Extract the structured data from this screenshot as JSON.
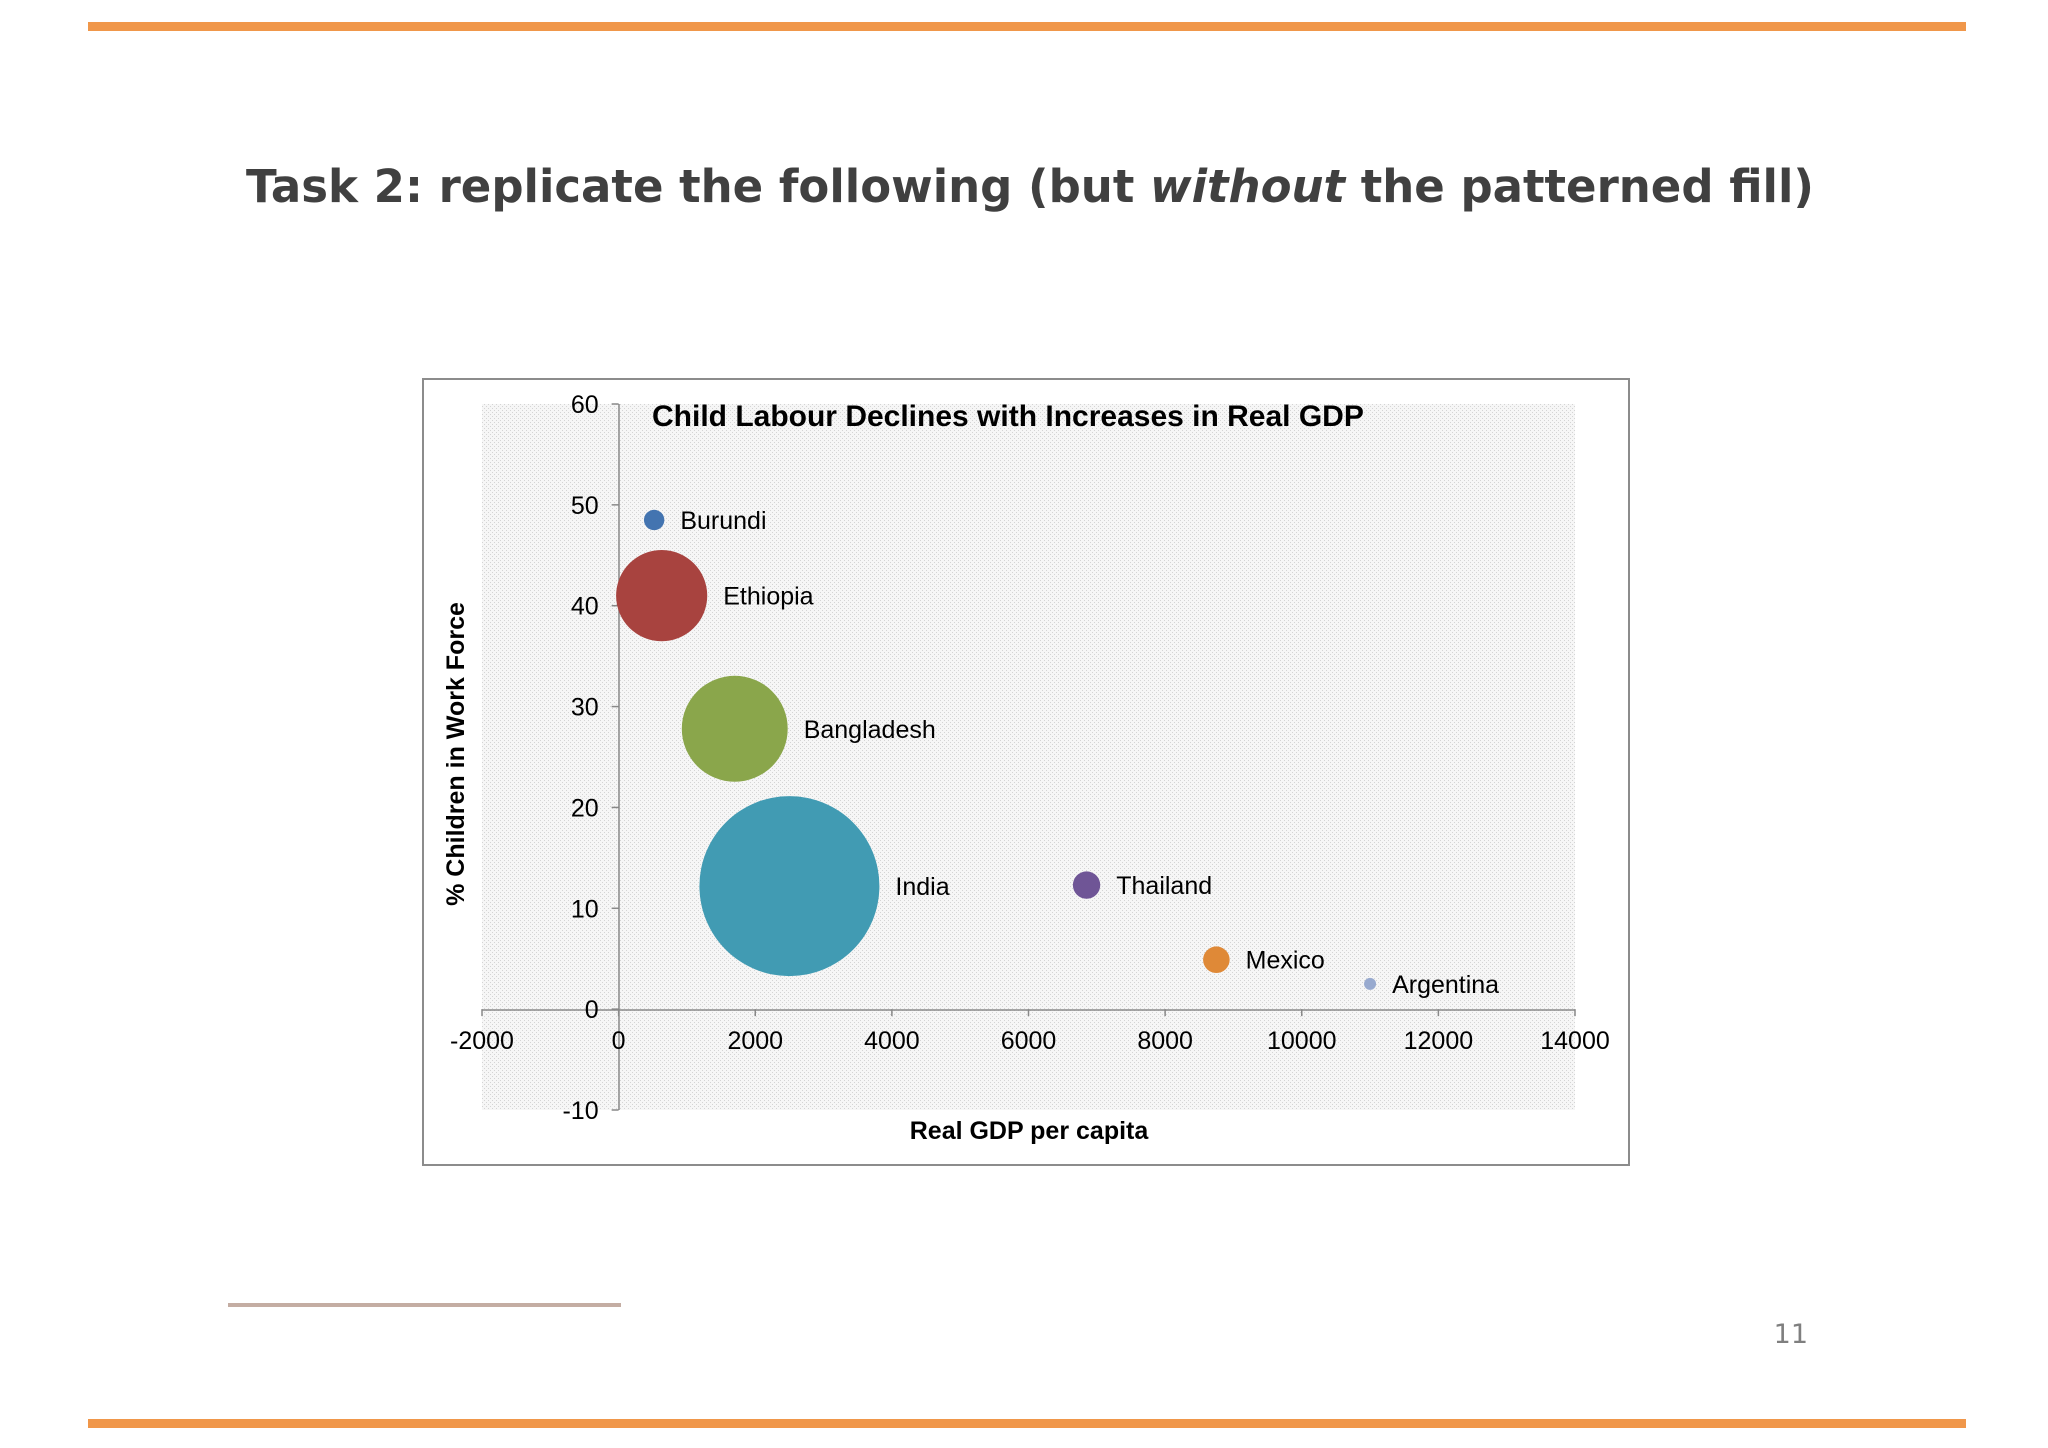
{
  "slide": {
    "title_before": "Task 2: replicate the following (but ",
    "title_emphasis": "without",
    "title_after": " the patterned fill)",
    "page_number": "11",
    "accent_color": "#f0974a"
  },
  "chart_data": {
    "type": "scatter",
    "subtype": "bubble",
    "title": "Child Labour Declines with Increases in Real GDP",
    "xlabel": "Real GDP per capita",
    "ylabel": "% Children in Work Force",
    "xlim": [
      -2000,
      14000
    ],
    "ylim": [
      -10,
      60
    ],
    "xticks": [
      "-2000",
      "0",
      "2000",
      "4000",
      "6000",
      "8000",
      "10000",
      "12000",
      "14000"
    ],
    "yticks": [
      "-10",
      "0",
      "10",
      "20",
      "30",
      "40",
      "50",
      "60"
    ],
    "grid": false,
    "legend": "none",
    "points": [
      {
        "label": "Burundi",
        "x": 520,
        "y": 48.5,
        "size": 1,
        "color": "#4374b0"
      },
      {
        "label": "Ethiopia",
        "x": 630,
        "y": 41,
        "size": 20,
        "color": "#a8433f"
      },
      {
        "label": "Bangladesh",
        "x": 1700,
        "y": 27.8,
        "size": 27,
        "color": "#8aa64b"
      },
      {
        "label": "India",
        "x": 2500,
        "y": 12.2,
        "size": 78,
        "color": "#419bb3"
      },
      {
        "label": "Thailand",
        "x": 6850,
        "y": 12.3,
        "size": 1.8,
        "color": "#6f5596"
      },
      {
        "label": "Mexico",
        "x": 8750,
        "y": 4.9,
        "size": 1.7,
        "color": "#df8937"
      },
      {
        "label": "Argentina",
        "x": 11000,
        "y": 2.5,
        "size": 0.25,
        "color": "#98aacf"
      }
    ]
  }
}
